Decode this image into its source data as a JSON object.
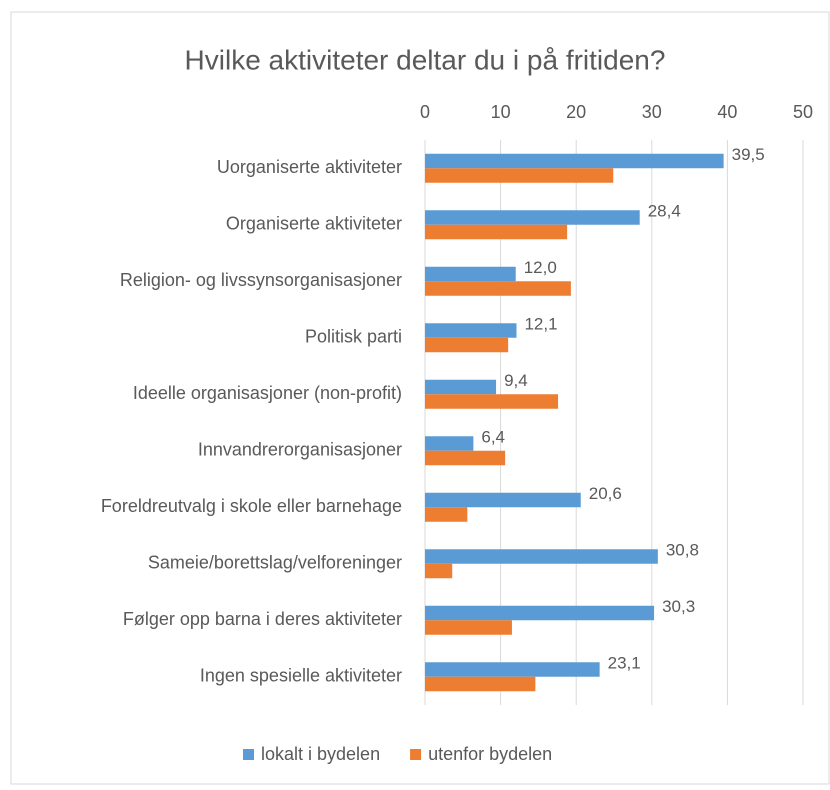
{
  "chart_data": {
    "type": "bar",
    "orientation": "horizontal",
    "title": "Hvilke aktiviteter deltar du i på fritiden?",
    "categories": [
      "Uorganiserte aktiviteter",
      "Organiserte aktiviteter",
      "Religion- og livssynsorganisasjoner",
      "Politisk parti",
      "Ideelle organisasjoner (non-profit)",
      "Innvandrerorganisasjoner",
      "Foreldreutvalg i skole eller barnehage",
      "Sameie/borettslag/velforeninger",
      "Følger opp barna i deres aktiviteter",
      "Ingen spesielle aktiviteter"
    ],
    "series": [
      {
        "name": "lokalt i bydelen",
        "color": "#5b9bd5",
        "values": [
          39.5,
          28.4,
          12.0,
          12.1,
          9.4,
          6.4,
          20.6,
          30.8,
          30.3,
          23.1
        ],
        "value_labels": [
          "39,5",
          "28,4",
          "12,0",
          "12,1",
          "9,4",
          "6,4",
          "20,6",
          "30,8",
          "30,3",
          "23,1"
        ]
      },
      {
        "name": "utenfor bydelen",
        "color": "#ed7d31",
        "values": [
          24.9,
          18.8,
          19.3,
          11.0,
          17.6,
          10.6,
          5.6,
          3.6,
          11.5,
          14.6
        ]
      }
    ],
    "xlim": [
      0,
      50
    ],
    "xticks": [
      0,
      10,
      20,
      30,
      40,
      50
    ],
    "grid": true,
    "legend": "bottom"
  }
}
